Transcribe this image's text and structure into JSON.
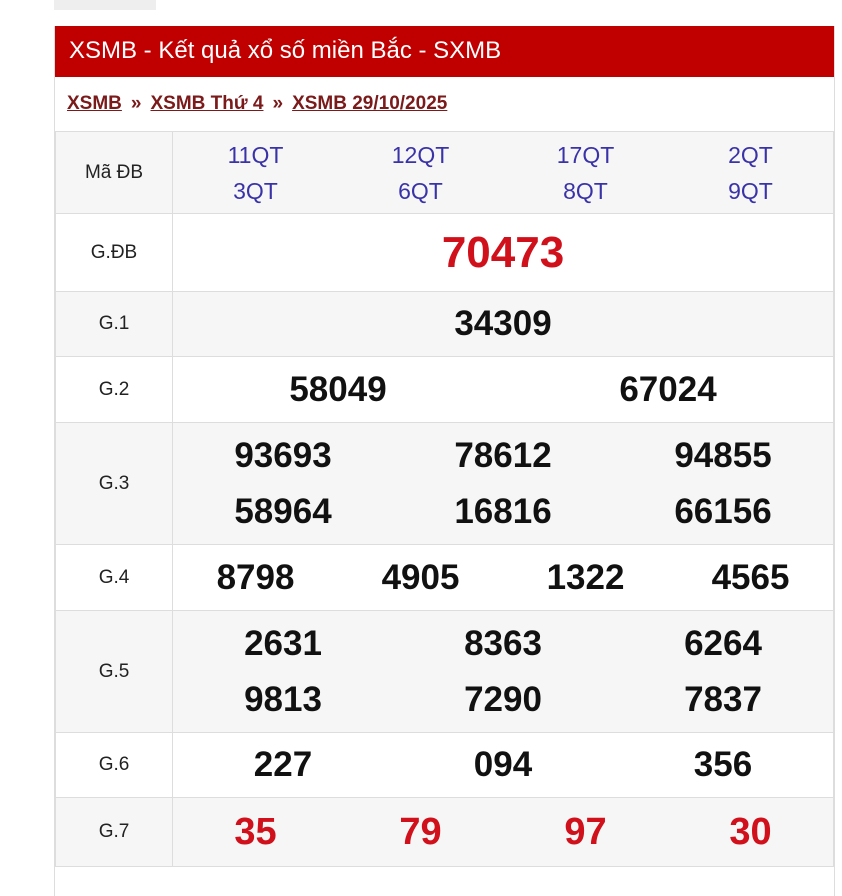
{
  "header": {
    "title": "XSMB - Kết quả xổ số miền Bắc - SXMB"
  },
  "breadcrumb": [
    {
      "label": "XSMB"
    },
    {
      "label": "XSMB Thứ 4"
    },
    {
      "label": "XSMB 29/10/2025"
    }
  ],
  "breadcrumb_sep": "»",
  "ma_db": {
    "label": "Mã ĐB",
    "codes": [
      "11QT",
      "12QT",
      "17QT",
      "2QT",
      "3QT",
      "6QT",
      "8QT",
      "9QT"
    ]
  },
  "prizes": {
    "gdb": {
      "label": "G.ĐB",
      "numbers": [
        "70473"
      ]
    },
    "g1": {
      "label": "G.1",
      "numbers": [
        "34309"
      ]
    },
    "g2": {
      "label": "G.2",
      "numbers": [
        "58049",
        "67024"
      ]
    },
    "g3": {
      "label": "G.3",
      "numbers": [
        "93693",
        "78612",
        "94855",
        "58964",
        "16816",
        "66156"
      ]
    },
    "g4": {
      "label": "G.4",
      "numbers": [
        "8798",
        "4905",
        "1322",
        "4565"
      ]
    },
    "g5": {
      "label": "G.5",
      "numbers": [
        "2631",
        "8363",
        "6264",
        "9813",
        "7290",
        "7837"
      ]
    },
    "g6": {
      "label": "G.6",
      "numbers": [
        "227",
        "094",
        "356"
      ]
    },
    "g7": {
      "label": "G.7",
      "numbers": [
        "35",
        "79",
        "97",
        "30"
      ]
    }
  },
  "colors": {
    "header_bg": "#c00000",
    "special_red": "#d0101a",
    "code_blue": "#3a33a8"
  }
}
